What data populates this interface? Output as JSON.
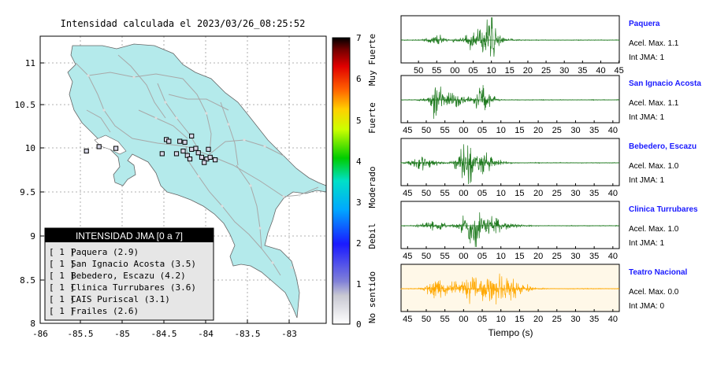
{
  "map": {
    "title": "Intensidad calculada el 2023/03/26_08:25:52",
    "xticks": [
      "-86",
      "-85.5",
      "-85",
      "-84.5",
      "-84",
      "-83.5",
      "-83"
    ],
    "yticks": [
      "11",
      "10.5",
      "10",
      "9.5",
      "9",
      "8.5",
      "8"
    ],
    "land_color": "#b4eaeb",
    "legend": {
      "header": "INTENSIDAD JMA [0 a 7]",
      "items": [
        {
          "level": "[ 1 ]",
          "label": "Paquera (2.9)"
        },
        {
          "level": "[ 1 ]",
          "label": "San Ignacio Acosta (3.5)"
        },
        {
          "level": "[ 1 ]",
          "label": "Bebedero, Escazu (4.2)"
        },
        {
          "level": "[ 1 ]",
          "label": "Clinica Turrubares (3.6)"
        },
        {
          "level": "[ 1 ]",
          "label": "CAIS Puriscal (3.1)"
        },
        {
          "level": "[ 1 ]",
          "label": "Frailes (2.6)"
        }
      ]
    }
  },
  "colorbar": {
    "ticks": [
      "7",
      "6",
      "5",
      "4",
      "3",
      "2",
      "1",
      "0"
    ],
    "categories": [
      "Muy Fuerte",
      "Fuerte",
      "Moderado",
      "Debil",
      "No sentido"
    ]
  },
  "waveforms": {
    "xlabel": "Tiempo (s)",
    "green": "#1f7a1f",
    "orange": "#ffa800",
    "traces": [
      {
        "station": "Paquera",
        "acel": "Acel. Max. 1.1",
        "jma": "Int JMA: 1",
        "ticks": [
          "50",
          "55",
          "00",
          "05",
          "10",
          "15",
          "20",
          "25",
          "30",
          "35",
          "40",
          "45"
        ]
      },
      {
        "station": "San Ignacio Acosta",
        "acel": "Acel. Max. 1.1",
        "jma": "Int JMA: 1",
        "ticks": [
          "45",
          "50",
          "55",
          "00",
          "05",
          "10",
          "15",
          "20",
          "25",
          "30",
          "35",
          "40"
        ]
      },
      {
        "station": "Bebedero, Escazu",
        "acel": "Acel. Max. 1.0",
        "jma": "Int JMA: 1",
        "ticks": [
          "45",
          "50",
          "55",
          "00",
          "05",
          "10",
          "15",
          "20",
          "25",
          "30",
          "35",
          "40"
        ]
      },
      {
        "station": "Clinica Turrubares",
        "acel": "Acel. Max. 1.0",
        "jma": "Int JMA: 1",
        "ticks": [
          "45",
          "50",
          "55",
          "00",
          "05",
          "10",
          "15",
          "20",
          "25",
          "30",
          "35",
          "40"
        ]
      },
      {
        "station": "Teatro Nacional",
        "acel": "Acel. Max. 0.0",
        "jma": "Int JMA: 0",
        "ticks": [
          "45",
          "50",
          "55",
          "00",
          "05",
          "10",
          "15",
          "20",
          "25",
          "30",
          "35",
          "40"
        ]
      }
    ]
  },
  "chart_data": [
    {
      "type": "scatter",
      "title": "Intensidad calculada el 2023/03/26_08:25:52",
      "xlim": [
        -86,
        -82.6
      ],
      "ylim": [
        8,
        11.25
      ],
      "legend": [
        "Paquera (2.9)",
        "San Ignacio Acosta (3.5)",
        "Bebedero, Escazu (4.2)",
        "Clinica Turrubares (3.6)",
        "CAIS Puriscal (3.1)",
        "Frailes (2.6)"
      ],
      "stations": [
        {
          "lon": -85.3,
          "lat": 10.0
        },
        {
          "lon": -85.45,
          "lat": 9.95
        },
        {
          "lon": -84.5,
          "lat": 10.08
        },
        {
          "lon": -84.47,
          "lat": 10.06
        },
        {
          "lon": -84.34,
          "lat": 10.06
        },
        {
          "lon": -84.28,
          "lat": 10.05
        },
        {
          "lon": -84.2,
          "lat": 10.12
        },
        {
          "lon": -84.2,
          "lat": 9.97
        },
        {
          "lon": -84.25,
          "lat": 9.9
        },
        {
          "lon": -84.15,
          "lat": 9.98
        },
        {
          "lon": -84.12,
          "lat": 9.93
        },
        {
          "lon": -84.08,
          "lat": 9.88
        },
        {
          "lon": -84.02,
          "lat": 9.86
        },
        {
          "lon": -83.98,
          "lat": 9.88
        },
        {
          "lon": -84.0,
          "lat": 9.97
        },
        {
          "lon": -84.38,
          "lat": 9.92
        },
        {
          "lon": -84.55,
          "lat": 9.92
        },
        {
          "lon": -84.22,
          "lat": 9.86
        },
        {
          "lon": -84.05,
          "lat": 9.82
        },
        {
          "lon": -83.92,
          "lat": 9.85
        },
        {
          "lon": -84.3,
          "lat": 9.95
        },
        {
          "lon": -85.1,
          "lat": 9.98
        }
      ]
    },
    {
      "type": "line",
      "xlabel": "Tiempo (s)",
      "series": [
        {
          "name": "Paquera",
          "acel_max": 1.1,
          "int_jma": 1
        },
        {
          "name": "San Ignacio Acosta",
          "acel_max": 1.1,
          "int_jma": 1
        },
        {
          "name": "Bebedero, Escazu",
          "acel_max": 1.0,
          "int_jma": 1
        },
        {
          "name": "Clinica Turrubares",
          "acel_max": 1.0,
          "int_jma": 1
        },
        {
          "name": "Teatro Nacional",
          "acel_max": 0.0,
          "int_jma": 0
        }
      ]
    }
  ]
}
